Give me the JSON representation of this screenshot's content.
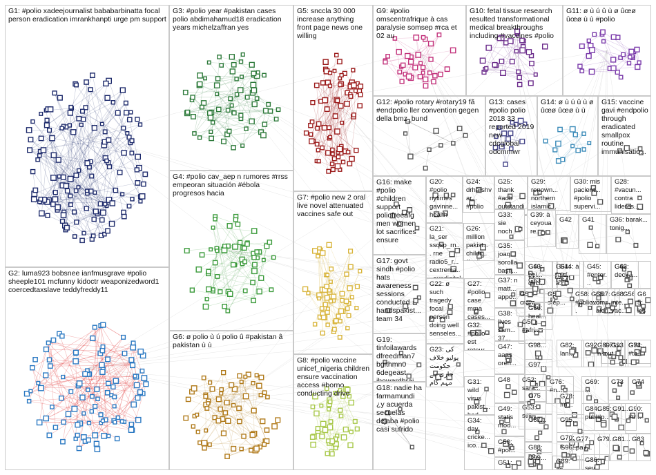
{
  "groups": [
    {
      "id": "G1",
      "label": "G1: #polio xadeejournalist bababarbinatta focal person eradication imrankhanpti urge pm support",
      "color": "#1d2a6b",
      "nodes": 150
    },
    {
      "id": "G2",
      "label": "G2: luma923 bobsnee ianfmusgrave #polio sheeple101 mcfunny kidoctr weaponizedword1 coercedtaxslave teddyfreddy11",
      "color": "#2a78c2",
      "nodes": 110
    },
    {
      "id": "G3",
      "label": "G3: #polio year #pakistan cases polio abdimahamud18 eradication years michelzaffran yes",
      "color": "#2d7a3a",
      "nodes": 70
    },
    {
      "id": "G4",
      "label": "G4: #polio cav_aep n rumores #rrss empeoran situación #ébola progresos hacia",
      "color": "#3a9a3a",
      "nodes": 60
    },
    {
      "id": "G5",
      "label": "G5: snccla 30 000 increase anything front page news one willing",
      "color": "#9b1b1b",
      "nodes": 80
    },
    {
      "id": "G6",
      "label": "G6: ø polio ù ú polio û #pakistan â pakistan ù ù",
      "color": "#b07a1a",
      "nodes": 70
    },
    {
      "id": "G7",
      "label": "G7: #polio new 2 oral live novel attenuated vaccines safe out",
      "color": "#d8b43a",
      "nodes": 60
    },
    {
      "id": "G8",
      "label": "G8: #polio vaccine unicef_nigeria children ensure vaccination access #borno conducting drive",
      "color": "#a8c84a",
      "nodes": 45
    },
    {
      "id": "G9",
      "label": "G9: #polio omscentrafrique à cas paralysie somsep #rca et 02 au",
      "color": "#c2307a",
      "nodes": 35
    },
    {
      "id": "G10",
      "label": "G10: fetal tissue research resulted transformational medical breakthroughs including #vaccines #polio",
      "color": "#6a2a8a",
      "nodes": 30
    },
    {
      "id": "G11",
      "label": "G11: ø ù ú û ù ø ûœø ûœø ù ù #polio",
      "color": "#7a3aaa",
      "nodes": 30
    },
    {
      "id": "G12",
      "label": "G12: #polio rotary #rotary19 fã #endpolio ller convention gegen della bmz_bund",
      "color": "#555555",
      "nodes": 10
    },
    {
      "id": "G13",
      "label": "G13: cases #polio polio 2018 33 reported 2019 new cdcglobal odcmmwr",
      "color": "#444488",
      "nodes": 14
    },
    {
      "id": "G14",
      "label": "G14: ø ù ú û ù ø ûœø ûœø ù ù",
      "color": "#3a8ab8",
      "nodes": 14
    },
    {
      "id": "G15",
      "label": "G15: vaccine gavi #endpolio through eradicated smallpox routine immunisatio...",
      "color": "#555555",
      "nodes": 4
    },
    {
      "id": "G16",
      "label": "G16: make #polio #children support poliofreeafg men women lot sacrifices ensure",
      "color": "#555555",
      "nodes": 6
    },
    {
      "id": "G17",
      "label": "G17: govt sindh #polio hats awareness sessions conducted handspakist... team 34",
      "color": "#555555",
      "nodes": 6
    },
    {
      "id": "G18",
      "label": "G18: nadie ha farmamundi ¿y acuerda secuelas dejaba #polio casi sufrido",
      "color": "#555555",
      "nodes": 4
    },
    {
      "id": "G19",
      "label": "G19: tinfoilawards dfreedman7 bglthmn0 6degeast jhowardbrai... needyeedy...",
      "color": "#555555",
      "nodes": 4
    },
    {
      "id": "G20",
      "label": "G20: #polio nytimes gavinne... health",
      "color": "#555555",
      "nodes": 5
    },
    {
      "id": "G21",
      "label": "G21: la_ser ssqsp_rn... rne radio5_r... cextrema... exndigital elsaltodi...",
      "color": "#555555",
      "nodes": 4
    },
    {
      "id": "G22",
      "label": "G22: ø such tragedy focal person doing well senseles...",
      "color": "#555555",
      "nodes": 4
    },
    {
      "id": "G23",
      "label": "G23: کی پولیو خلاف حکومت جاری ہے مہم کام کرے",
      "color": "#555555",
      "nodes": 4
    },
    {
      "id": "G24",
      "label": "G24: drharshvar... #polio heartiest...",
      "color": "#555555",
      "nodes": 3
    },
    {
      "id": "G25",
      "label": "G25: thank #adb outstandi...",
      "color": "#555555",
      "nodes": 3
    },
    {
      "id": "G26",
      "label": "G26: million pakist... childr... #polio...",
      "color": "#555555",
      "nodes": 3
    },
    {
      "id": "G27",
      "label": "G27: #polio case mma cases...",
      "color": "#555555",
      "nodes": 3
    },
    {
      "id": "G28",
      "label": "G28: #vacun... contra lideres...",
      "color": "#555555",
      "nodes": 3
    },
    {
      "id": "G29",
      "label": "G29: renown... northern islamic...",
      "color": "#555555",
      "nodes": 3
    },
    {
      "id": "G30",
      "label": "G30: mis pacient... #polio supervi...",
      "color": "#555555",
      "nodes": 3
    },
    {
      "id": "G31",
      "label": "G31: wild virus pakist... bad...",
      "color": "#555555",
      "nodes": 3
    },
    {
      "id": "G32",
      "label": "G32: #polio est retour au...",
      "color": "#555555",
      "nodes": 3
    },
    {
      "id": "G33",
      "label": "G33: sie noch",
      "color": "#555555",
      "nodes": 3
    },
    {
      "id": "G34",
      "label": "G34: day cricke... ico...",
      "color": "#555555",
      "nodes": 3
    },
    {
      "id": "G35",
      "label": "G35: joaq... sorolla basti...",
      "color": "#555555",
      "nodes": 3
    },
    {
      "id": "G36",
      "label": "G36: barak... tonig...",
      "color": "#555555",
      "nodes": 3
    },
    {
      "id": "G37",
      "label": "G37: n matt... appo...",
      "color": "#555555",
      "nodes": 3
    },
    {
      "id": "G38",
      "label": "G38: lives sam... 37...",
      "color": "#555555",
      "nodes": 3
    },
    {
      "id": "G39",
      "label": "G39: à ceyoua re...",
      "color": "#555555",
      "nodes": 3
    },
    {
      "id": "G40",
      "label": "G40: cases year...",
      "color": "#555555",
      "nodes": 3
    },
    {
      "id": "G41",
      "label": "G41",
      "color": "#555555",
      "nodes": 3
    },
    {
      "id": "G42",
      "label": "G42",
      "color": "#555555",
      "nodes": 3
    },
    {
      "id": "G43",
      "label": "G43",
      "color": "#555555",
      "nodes": 3
    },
    {
      "id": "G44",
      "label": "G44: à ɾ ɗ...",
      "color": "#555555",
      "nodes": 3
    },
    {
      "id": "G45",
      "label": "G45: #enter...",
      "color": "#555555",
      "nodes": 3
    },
    {
      "id": "G46",
      "label": "G46: decke...",
      "color": "#555555",
      "nodes": 3
    },
    {
      "id": "G47",
      "label": "G47: aaas oren...",
      "color": "#555555",
      "nodes": 3
    },
    {
      "id": "G48",
      "label": "G48",
      "color": "#555555",
      "nodes": 3
    },
    {
      "id": "G49",
      "label": "G49: statis mod...",
      "color": "#555555",
      "nodes": 3
    },
    {
      "id": "G50",
      "label": "G50: #pol...",
      "color": "#555555",
      "nodes": 3
    },
    {
      "id": "G51",
      "label": "G51: esp...",
      "color": "#555555",
      "nodes": 3
    },
    {
      "id": "G52",
      "label": "G52: sara...",
      "color": "#555555",
      "nodes": 3
    },
    {
      "id": "G53",
      "label": "G53: still...",
      "color": "#555555",
      "nodes": 3
    },
    {
      "id": "G54",
      "label": "G54: crow...",
      "color": "#555555",
      "nodes": 3
    },
    {
      "id": "G55",
      "label": "G55: wom...",
      "color": "#555555",
      "nodes": 3
    },
    {
      "id": "G56",
      "label": "G56",
      "color": "#555555",
      "nodes": 3
    },
    {
      "id": "G57",
      "label": "G57: step...",
      "color": "#555555",
      "nodes": 3
    },
    {
      "id": "G58",
      "label": "G58: #polio...",
      "color": "#555555",
      "nodes": 3
    },
    {
      "id": "G59",
      "label": "G59: #afri...",
      "color": "#555555",
      "nodes": 3
    },
    {
      "id": "G60",
      "label": "G60: bei... dec...",
      "color": "#555555",
      "nodes": 3
    },
    {
      "id": "G61",
      "label": "G61: falt... a...",
      "color": "#555555",
      "nodes": 3
    },
    {
      "id": "G62",
      "label": "G62",
      "color": "#555555",
      "nodes": 3
    },
    {
      "id": "G63",
      "label": "G63",
      "color": "#555555",
      "nodes": 3
    },
    {
      "id": "G64",
      "label": "G64",
      "color": "#555555",
      "nodes": 3
    },
    {
      "id": "G65",
      "label": "G65: les et",
      "color": "#555555",
      "nodes": 3
    },
    {
      "id": "G66",
      "label": "G66: heal...",
      "color": "#555555",
      "nodes": 3
    },
    {
      "id": "G67",
      "label": "G67: oms aler...",
      "color": "#555555",
      "nodes": 3
    },
    {
      "id": "G68",
      "label": "G68: inte... vac...",
      "color": "#555555",
      "nodes": 3
    },
    {
      "id": "G69",
      "label": "G69: ...",
      "color": "#555555",
      "nodes": 3
    },
    {
      "id": "G70",
      "label": "G70: s...",
      "color": "#555555",
      "nodes": 3
    },
    {
      "id": "G71",
      "label": "G71: out...",
      "color": "#555555",
      "nodes": 3
    },
    {
      "id": "G72",
      "label": "G72: #ta...",
      "color": "#555555",
      "nodes": 3
    },
    {
      "id": "G73",
      "label": "G73",
      "color": "#555555",
      "nodes": 3
    },
    {
      "id": "G74",
      "label": "G74",
      "color": "#555555",
      "nodes": 3
    },
    {
      "id": "G75",
      "label": "G75",
      "color": "#555555",
      "nodes": 3
    },
    {
      "id": "G76",
      "label": "G76: #n...",
      "color": "#555555",
      "nodes": 3
    },
    {
      "id": "G77",
      "label": "G77: pak...",
      "color": "#555555",
      "nodes": 3
    },
    {
      "id": "G78",
      "label": "G78: #n...",
      "color": "#555555",
      "nodes": 3
    },
    {
      "id": "G79",
      "label": "G79...",
      "color": "#555555",
      "nodes": 3
    },
    {
      "id": "G80",
      "label": "G80: nib...",
      "color": "#555555",
      "nodes": 3
    },
    {
      "id": "G81",
      "label": "G81...",
      "color": "#555555",
      "nodes": 3
    },
    {
      "id": "G82",
      "label": "G82: lan...",
      "color": "#555555",
      "nodes": 3
    },
    {
      "id": "G83",
      "label": "G83",
      "color": "#555555",
      "nodes": 3
    },
    {
      "id": "G84",
      "label": "G84: publ...",
      "color": "#555555",
      "nodes": 3
    },
    {
      "id": "G85",
      "label": "G85: #p...",
      "color": "#555555",
      "nodes": 3
    },
    {
      "id": "G86",
      "label": "G86: sev...",
      "color": "#555555",
      "nodes": 3
    },
    {
      "id": "G87",
      "label": "G87...",
      "color": "#555555",
      "nodes": 3
    },
    {
      "id": "G88",
      "label": "G88: ne...",
      "color": "#555555",
      "nodes": 3
    },
    {
      "id": "G89",
      "label": "G89: #n...",
      "color": "#555555",
      "nodes": 3
    },
    {
      "id": "G90",
      "label": "G90: #tr...",
      "color": "#555555",
      "nodes": 3
    },
    {
      "id": "G91",
      "label": "G91...",
      "color": "#555555",
      "nodes": 3
    },
    {
      "id": "G92",
      "label": "G92",
      "color": "#555555",
      "nodes": 3
    },
    {
      "id": "G93",
      "label": "G93",
      "color": "#555555",
      "nodes": 3
    },
    {
      "id": "G94",
      "label": "G94...",
      "color": "#555555",
      "nodes": 3
    },
    {
      "id": "G95",
      "label": "G95...",
      "color": "#555555",
      "nodes": 3
    },
    {
      "id": "G96",
      "label": "G96...",
      "color": "#555555",
      "nodes": 3
    },
    {
      "id": "G97",
      "label": "G97...",
      "color": "#555555",
      "nodes": 3
    },
    {
      "id": "G98",
      "label": "G98...",
      "color": "#555555",
      "nodes": 3
    },
    {
      "id": "G99",
      "label": "G99...",
      "color": "#555555",
      "nodes": 3
    }
  ]
}
